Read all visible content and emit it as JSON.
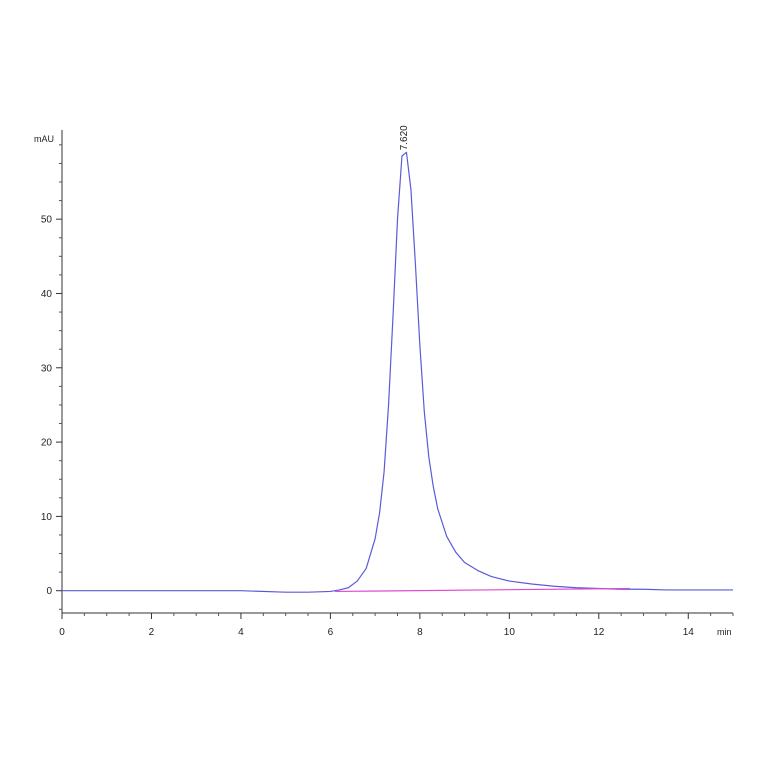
{
  "chart_data": {
    "type": "line",
    "xlabel": "min",
    "ylabel": "mAU",
    "xlim": [
      0,
      15
    ],
    "ylim": [
      -3,
      62
    ],
    "x_ticks": [
      0,
      2,
      4,
      6,
      8,
      10,
      12,
      14
    ],
    "y_ticks": [
      0,
      10,
      20,
      30,
      40,
      50
    ],
    "grid": false,
    "legend": "none",
    "peak_annotation": {
      "text": "7.620",
      "x": 7.62,
      "y": 59.0
    },
    "series": [
      {
        "color": "#5b5bd6",
        "x": [
          0,
          1,
          2,
          3,
          4,
          5,
          5.5,
          6.0,
          6.2,
          6.4,
          6.6,
          6.8,
          7.0,
          7.1,
          7.2,
          7.3,
          7.4,
          7.5,
          7.6,
          7.7,
          7.8,
          7.9,
          8.0,
          8.1,
          8.2,
          8.3,
          8.4,
          8.6,
          8.8,
          9.0,
          9.3,
          9.6,
          10.0,
          10.5,
          11.0,
          11.5,
          12.0,
          12.5,
          13.0,
          13.5,
          14.0,
          15.0
        ],
        "y": [
          0,
          0,
          0,
          0,
          0,
          -0.2,
          -0.2,
          -0.1,
          0.1,
          0.4,
          1.3,
          3.0,
          7.0,
          10.5,
          16.0,
          25.0,
          37.0,
          50.0,
          58.5,
          59.0,
          54.0,
          44.0,
          33.0,
          24.0,
          18.0,
          14.0,
          11.0,
          7.3,
          5.2,
          3.8,
          2.7,
          1.9,
          1.3,
          0.9,
          0.6,
          0.4,
          0.3,
          0.2,
          0.2,
          0.1,
          0.1,
          0.1
        ]
      },
      {
        "color": "#e04ad0",
        "x": [
          6.1,
          12.7
        ],
        "y": [
          -0.1,
          0.3
        ]
      }
    ]
  }
}
